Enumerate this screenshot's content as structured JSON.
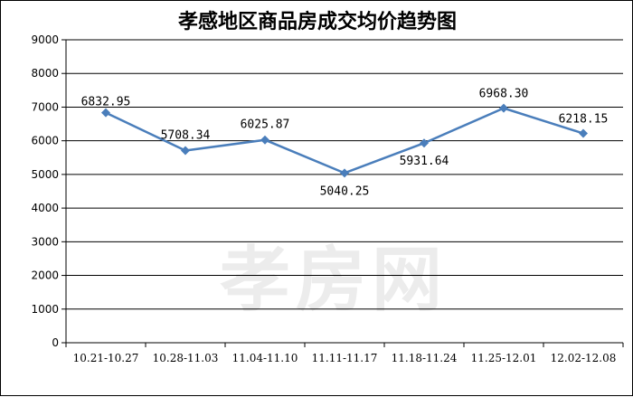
{
  "watermark": "孝房网",
  "chart_data": {
    "type": "line",
    "title": "孝感地区商品房成交均价趋势图",
    "xlabel": "",
    "ylabel": "",
    "categories": [
      "10.21-10.27",
      "10.28-11.03",
      "11.04-11.10",
      "11.11-11.17",
      "11.18-11.24",
      "11.25-12.01",
      "12.02-12.08"
    ],
    "series": [
      {
        "values": [
          6832.95,
          5708.34,
          6025.87,
          5040.25,
          5931.64,
          6968.3,
          6218.15
        ],
        "labels": [
          "6832.95",
          "5708.34",
          "6025.87",
          "5040.25",
          "5931.64",
          "6968.30",
          "6218.15"
        ],
        "color": "#4a7ebb"
      }
    ],
    "ylim": [
      0,
      9000
    ],
    "yticks": [
      0,
      1000,
      2000,
      3000,
      4000,
      5000,
      6000,
      7000,
      8000,
      9000
    ],
    "grid": true,
    "legend": "none",
    "marker": "diamond"
  }
}
